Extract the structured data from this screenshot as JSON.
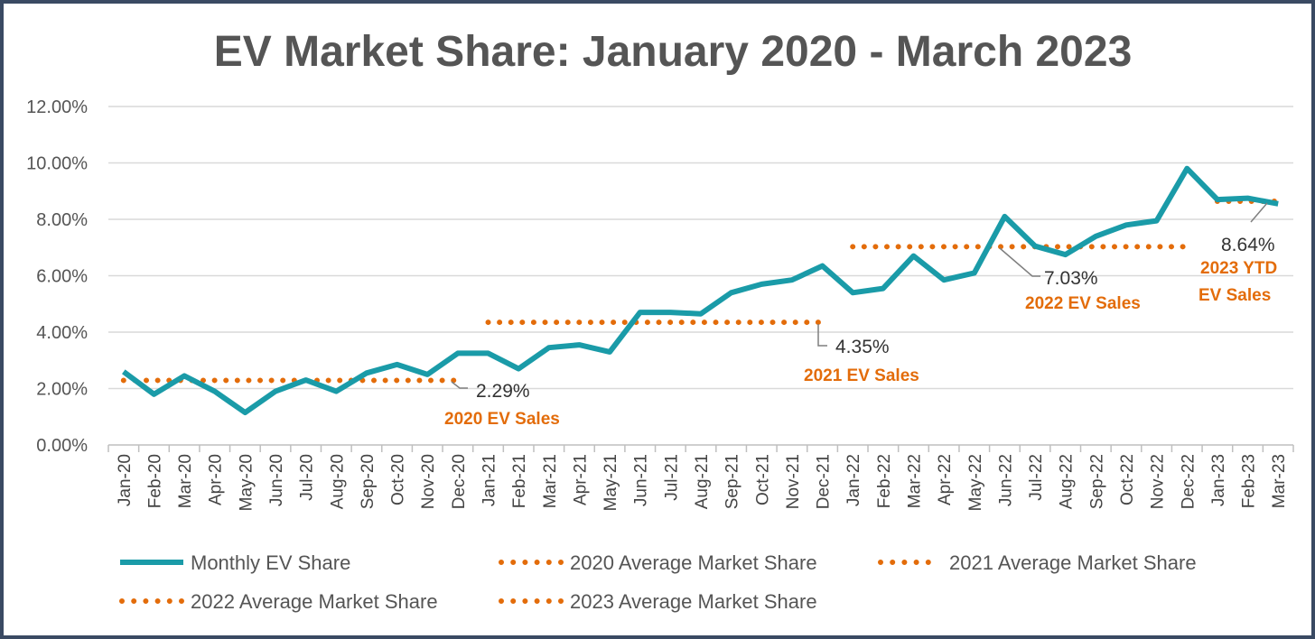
{
  "chart_data": {
    "type": "line",
    "title": "EV Market Share: January 2020 - March 2023",
    "xlabel": "",
    "ylabel": "",
    "ylim": [
      0,
      12
    ],
    "y_tick_labels": [
      "0.00%",
      "2.00%",
      "4.00%",
      "6.00%",
      "8.00%",
      "10.00%",
      "12.00%"
    ],
    "grid": "horizontal",
    "legend_position": "bottom",
    "categories": [
      "Jan-20",
      "Feb-20",
      "Mar-20",
      "Apr-20",
      "May-20",
      "Jun-20",
      "Jul-20",
      "Aug-20",
      "Sep-20",
      "Oct-20",
      "Nov-20",
      "Dec-20",
      "Jan-21",
      "Feb-21",
      "Mar-21",
      "Apr-21",
      "May-21",
      "Jun-21",
      "Jul-21",
      "Aug-21",
      "Sep-21",
      "Oct-21",
      "Nov-21",
      "Dec-21",
      "Jan-22",
      "Feb-22",
      "Mar-22",
      "Apr-22",
      "May-22",
      "Jun-22",
      "Jul-22",
      "Aug-22",
      "Sep-22",
      "Oct-22",
      "Nov-22",
      "Dec-22",
      "Jan-23",
      "Feb-23",
      "Mar-23"
    ],
    "series": [
      {
        "name": "Monthly EV Share",
        "style": "solid",
        "color": "#1a9ba8",
        "values": [
          2.6,
          1.8,
          2.45,
          1.9,
          1.15,
          1.9,
          2.3,
          1.9,
          2.55,
          2.85,
          2.5,
          3.25,
          3.25,
          2.7,
          3.45,
          3.55,
          3.3,
          4.7,
          4.7,
          4.65,
          5.4,
          5.7,
          5.85,
          6.35,
          5.4,
          5.55,
          6.7,
          5.85,
          6.1,
          8.1,
          7.05,
          6.75,
          7.4,
          7.8,
          7.95,
          9.8,
          8.7,
          8.75,
          8.55
        ]
      },
      {
        "name": "2020 Average Market Share",
        "style": "dotted",
        "color": "#e36c0a",
        "value": 2.29,
        "range": [
          "Jan-20",
          "Dec-20"
        ]
      },
      {
        "name": "2021 Average Market Share",
        "style": "dotted",
        "color": "#e36c0a",
        "value": 4.35,
        "range": [
          "Jan-21",
          "Dec-21"
        ]
      },
      {
        "name": "2022 Average Market Share",
        "style": "dotted",
        "color": "#e36c0a",
        "value": 7.03,
        "range": [
          "Jan-22",
          "Dec-22"
        ]
      },
      {
        "name": "2023 Average Market Share",
        "style": "dotted",
        "color": "#e36c0a",
        "value": 8.64,
        "range": [
          "Jan-23",
          "Mar-23"
        ]
      }
    ],
    "annotations": [
      {
        "value": "2.29%",
        "label": "2020 EV Sales"
      },
      {
        "value": "4.35%",
        "label": "2021 EV Sales"
      },
      {
        "value": "7.03%",
        "label": "2022 EV Sales"
      },
      {
        "value": "8.64%",
        "label": "2023 YTD",
        "label2": "EV Sales"
      }
    ]
  }
}
